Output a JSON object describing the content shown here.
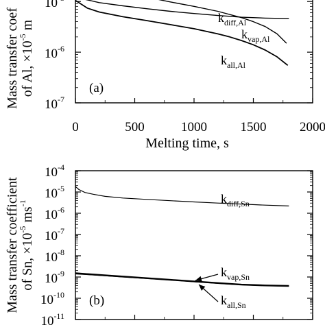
{
  "chart_data": [
    {
      "panel": "(a)",
      "type": "line",
      "xlabel": "Melting time, s",
      "ylabel": [
        "Mass transfer coef",
        "of Al, ×10",
        "-5",
        " m"
      ],
      "xlim": [
        0,
        2000
      ],
      "ylim_log10": [
        -7,
        -4.7
      ],
      "x_ticks": [
        "0",
        "500",
        "1000",
        "1500",
        "2000"
      ],
      "y_ticks": [
        {
          "base": "10",
          "exp": "-5",
          "v": -5
        },
        {
          "base": "10",
          "exp": "-6",
          "v": -6
        },
        {
          "base": "10",
          "exp": "-7",
          "v": -7
        }
      ],
      "series": [
        {
          "name": "k",
          "sub": "diff,Al",
          "width": 1.4,
          "x": [
            0,
            40,
            120,
            200,
            400,
            600,
            800,
            1000,
            1200,
            1400,
            1600,
            1800
          ],
          "y": [
            1.2e-05,
            1.15e-05,
            1.05e-05,
            9.5e-06,
            8.2e-06,
            7.2e-06,
            6.4e-06,
            5.8e-06,
            5.3e-06,
            4.9e-06,
            4.7e-06,
            4.6e-06
          ]
        },
        {
          "name": "k",
          "sub": "vap,Al",
          "width": 1.4,
          "x": [
            130,
            200,
            400,
            600,
            800,
            1000,
            1200,
            1400,
            1500,
            1600,
            1700,
            1780
          ],
          "y": [
            2.5e-05,
            2.1e-05,
            1.55e-05,
            1.22e-05,
            9.8e-06,
            8e-06,
            6.4e-06,
            4.8e-06,
            4e-06,
            3.2e-06,
            2.3e-06,
            1.5e-06
          ]
        },
        {
          "name": "k",
          "sub": "all,Al",
          "width": 1.8,
          "x": [
            0,
            100,
            200,
            400,
            600,
            800,
            1000,
            1200,
            1300,
            1400,
            1500,
            1600,
            1700,
            1790
          ],
          "y": [
            1.05e-05,
            7.4e-06,
            6.2e-06,
            5e-06,
            4.2e-06,
            3.5e-06,
            2.9e-06,
            2.3e-06,
            2e-06,
            1.7e-06,
            1.4e-06,
            1.1e-06,
            8.1e-07,
            5.5e-07
          ]
        }
      ]
    },
    {
      "panel": "(b)",
      "type": "line",
      "xlabel": "",
      "ylabel": [
        "Mass transfer coefficient",
        "of Sn, ×10",
        "-5",
        " ms",
        "-1"
      ],
      "xlim": [
        0,
        2000
      ],
      "ylim_log10": [
        -11,
        -4
      ],
      "y_ticks": [
        {
          "base": "10",
          "exp": "-4",
          "v": -4
        },
        {
          "base": "10",
          "exp": "-5",
          "v": -5
        },
        {
          "base": "10",
          "exp": "-6",
          "v": -6
        },
        {
          "base": "10",
          "exp": "-7",
          "v": -7
        },
        {
          "base": "10",
          "exp": "-8",
          "v": -8
        },
        {
          "base": "10",
          "exp": "-9",
          "v": -9
        },
        {
          "base": "10",
          "exp": "-10",
          "v": -10
        },
        {
          "base": "10",
          "exp": "-11",
          "v": -11
        }
      ],
      "series": [
        {
          "name": "k",
          "sub": "diff,Sn",
          "width": 1.2,
          "x": [
            0,
            30,
            80,
            150,
            250,
            400,
            600,
            800,
            1000,
            1200,
            1400,
            1600,
            1800
          ],
          "y": [
            1.8e-05,
            1.3e-05,
            9.5e-06,
            7.8e-06,
            6.2e-06,
            5.2e-06,
            4.5e-06,
            3.9e-06,
            3.4e-06,
            3e-06,
            2.7e-06,
            2.4e-06,
            2.2e-06
          ]
        },
        {
          "name": "k",
          "sub": "vap,Sn",
          "width": 1.2,
          "x": [
            0,
            200,
            400,
            600,
            800,
            1000,
            1200,
            1400,
            1600,
            1800
          ],
          "y": [
            1.4e-09,
            1.2e-09,
            1e-09,
            8.5e-10,
            7.2e-10,
            6e-10,
            5e-10,
            4.3e-10,
            3.9e-10,
            3.7e-10
          ]
        },
        {
          "name": "k",
          "sub": "all,Sn",
          "width": 2.4,
          "x": [
            0,
            200,
            400,
            600,
            800,
            1000,
            1200,
            1400,
            1600,
            1800
          ],
          "y": [
            1.5e-09,
            1.25e-09,
            1.05e-09,
            8.8e-10,
            7.4e-10,
            6.2e-10,
            5.2e-10,
            4.4e-10,
            4e-10,
            3.8e-10
          ]
        }
      ]
    }
  ]
}
